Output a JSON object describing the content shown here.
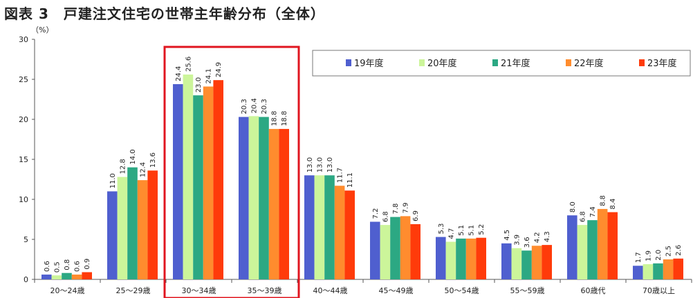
{
  "title": "図表 3　戸建注文住宅の世帯主年齢分布（全体）",
  "chart_data": {
    "type": "bar",
    "title": "図表 3　戸建注文住宅の世帯主年齢分布（全体）",
    "yunit": "（%）",
    "ylim": [
      0,
      30
    ],
    "yticks": [
      0,
      5,
      10,
      15,
      20,
      25,
      30
    ],
    "grid": false,
    "legend_position": "top-right",
    "highlight": {
      "categories": [
        "30～34歳",
        "35～39歳"
      ],
      "color": "#e0151f"
    },
    "categories": [
      "20～24歳",
      "25～29歳",
      "30～34歳",
      "35～39歳",
      "40～44歳",
      "45～49歳",
      "50～54歳",
      "55～59歳",
      "60歳代",
      "70歳以上"
    ],
    "series": [
      {
        "name": "19年度",
        "color": "#4f5fcf",
        "values": [
          0.6,
          11.0,
          24.4,
          20.3,
          13.0,
          7.2,
          5.3,
          4.5,
          8.0,
          1.7
        ]
      },
      {
        "name": "20年度",
        "color": "#ccf59a",
        "values": [
          0.5,
          12.8,
          25.6,
          20.4,
          13.0,
          6.8,
          4.7,
          3.9,
          6.8,
          1.9
        ]
      },
      {
        "name": "21年度",
        "color": "#2ca883",
        "values": [
          0.8,
          14.0,
          23.0,
          20.3,
          13.0,
          7.8,
          5.1,
          3.6,
          7.4,
          2.0
        ]
      },
      {
        "name": "22年度",
        "color": "#ff8c2e",
        "values": [
          0.6,
          12.4,
          24.1,
          18.8,
          11.7,
          7.9,
          5.1,
          4.2,
          8.8,
          2.5
        ]
      },
      {
        "name": "23年度",
        "color": "#ff3b0a",
        "values": [
          0.9,
          13.6,
          24.9,
          18.8,
          11.1,
          6.9,
          5.2,
          4.3,
          8.4,
          2.6
        ]
      }
    ]
  }
}
